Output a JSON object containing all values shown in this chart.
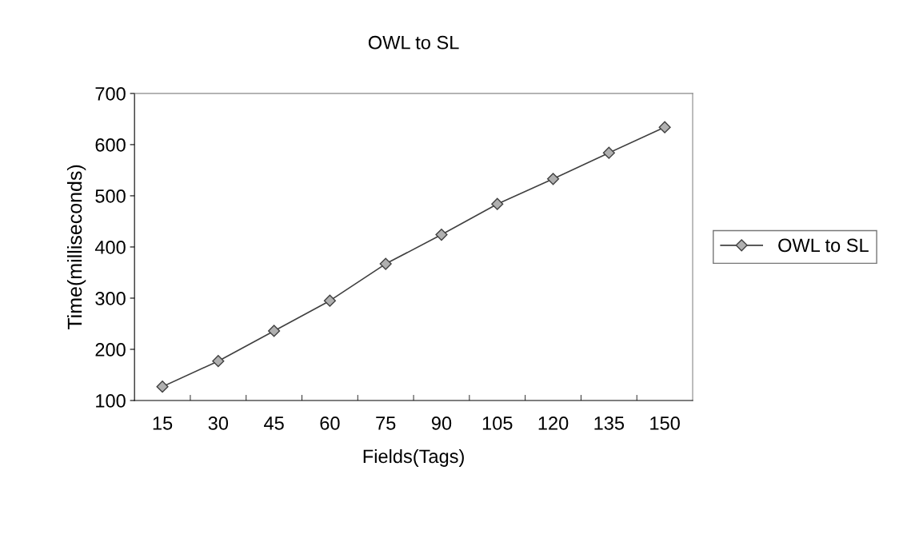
{
  "chart_data": {
    "type": "line",
    "title": "OWL to SL",
    "xlabel": "Fields(Tags)",
    "ylabel": "Time(milliseconds)",
    "categories": [
      "15",
      "30",
      "45",
      "60",
      "75",
      "90",
      "105",
      "120",
      "135",
      "150"
    ],
    "series": [
      {
        "name": "OWL to SL",
        "color": "#404040",
        "values": [
          127,
          177,
          236,
          295,
          367,
          424,
          484,
          533,
          584,
          634
        ]
      }
    ],
    "ylim": [
      100,
      700
    ],
    "yticks": [
      100,
      200,
      300,
      400,
      500,
      600,
      700
    ],
    "marker": "diamond",
    "line_style": "solid",
    "legend": "right",
    "grid": false
  }
}
